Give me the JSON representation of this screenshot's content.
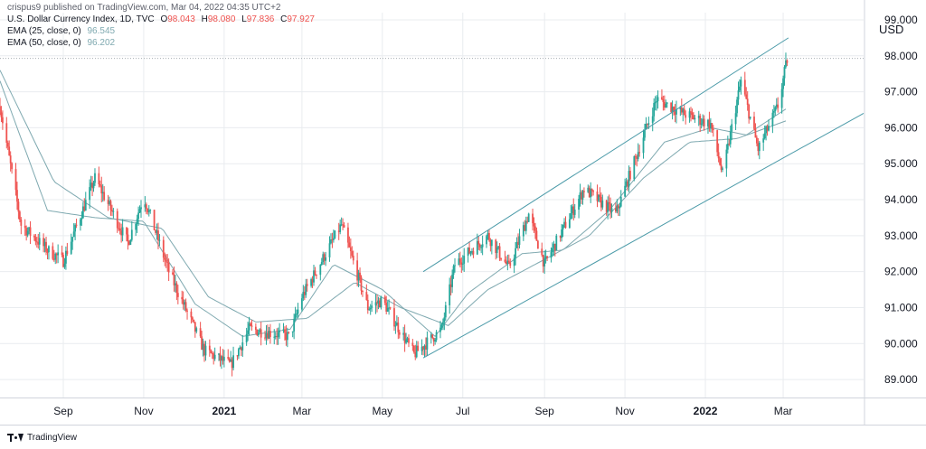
{
  "publisher_line": "crispus9 published on TradingView.com, Mar 04, 2022 04:35 UTC+2",
  "legend": {
    "symbol": "U.S. Dollar Currency Index, 1D, TVC",
    "ohlc": {
      "o_label": "O",
      "o": "98.043",
      "h_label": "H",
      "h": "98.080",
      "l_label": "L",
      "l": "97.836",
      "c_label": "C",
      "c": "97.927"
    },
    "ema25_label": "EMA (25, close, 0)",
    "ema25_value": "96.545",
    "ema50_label": "EMA (50, close, 0)",
    "ema50_value": "96.202"
  },
  "footer_brand": "TradingView",
  "colors": {
    "up": "#26a69a",
    "down": "#ef5350",
    "ema": "#7fa9b0",
    "grid": "#e9ecef",
    "channel": "#4a9aa8"
  },
  "chart_data": {
    "type": "candlestick",
    "currency_label": "USD",
    "y_axis": {
      "min": 88.5,
      "max": 99.2,
      "ticks": [
        "89.000",
        "90.000",
        "91.000",
        "92.000",
        "93.000",
        "94.000",
        "95.000",
        "96.000",
        "97.000",
        "98.000",
        "99.000"
      ]
    },
    "x_axis": {
      "ticks": [
        {
          "label": "Sep",
          "date": "2020-09-01",
          "bold": false
        },
        {
          "label": "Nov",
          "date": "2020-11-01",
          "bold": false
        },
        {
          "label": "2021",
          "date": "2021-01-01",
          "bold": true
        },
        {
          "label": "Mar",
          "date": "2021-03-01",
          "bold": false
        },
        {
          "label": "May",
          "date": "2021-05-01",
          "bold": false
        },
        {
          "label": "Jul",
          "date": "2021-07-01",
          "bold": false
        },
        {
          "label": "Sep",
          "date": "2021-09-01",
          "bold": false
        },
        {
          "label": "Nov",
          "date": "2021-11-01",
          "bold": false
        },
        {
          "label": "2022",
          "date": "2022-01-01",
          "bold": true
        },
        {
          "label": "Mar",
          "date": "2022-03-01",
          "bold": false
        }
      ]
    },
    "x_range": [
      "2020-07-15",
      "2022-05-01"
    ],
    "last_close": 97.927,
    "path_points": [
      [
        "2020-07-15",
        96.6
      ],
      [
        "2020-07-31",
        93.3
      ],
      [
        "2020-08-20",
        92.6
      ],
      [
        "2020-09-01",
        92.3
      ],
      [
        "2020-09-25",
        94.6
      ],
      [
        "2020-10-20",
        92.8
      ],
      [
        "2020-11-01",
        94.1
      ],
      [
        "2020-11-20",
        92.0
      ],
      [
        "2020-12-17",
        89.8
      ],
      [
        "2021-01-06",
        89.4
      ],
      [
        "2021-01-20",
        90.4
      ],
      [
        "2021-02-20",
        90.2
      ],
      [
        "2021-03-01",
        91.3
      ],
      [
        "2021-03-31",
        93.3
      ],
      [
        "2021-04-20",
        91.0
      ],
      [
        "2021-05-01",
        91.2
      ],
      [
        "2021-05-25",
        89.7
      ],
      [
        "2021-06-15",
        90.4
      ],
      [
        "2021-06-25",
        92.2
      ],
      [
        "2021-07-20",
        93.0
      ],
      [
        "2021-08-05",
        92.1
      ],
      [
        "2021-08-20",
        93.6
      ],
      [
        "2021-09-01",
        92.2
      ],
      [
        "2021-10-01",
        94.3
      ],
      [
        "2021-10-25",
        93.6
      ],
      [
        "2021-11-25",
        96.8
      ],
      [
        "2021-12-15",
        96.4
      ],
      [
        "2022-01-05",
        96.1
      ],
      [
        "2022-01-14",
        94.7
      ],
      [
        "2022-01-28",
        97.3
      ],
      [
        "2022-02-10",
        95.4
      ],
      [
        "2022-02-25",
        96.6
      ],
      [
        "2022-03-04",
        97.9
      ]
    ],
    "ema25": [
      [
        "2020-07-15",
        97.3
      ],
      [
        "2020-08-20",
        93.7
      ],
      [
        "2020-09-25",
        93.5
      ],
      [
        "2020-11-01",
        93.4
      ],
      [
        "2020-12-10",
        91.1
      ],
      [
        "2021-01-15",
        90.2
      ],
      [
        "2021-02-20",
        90.4
      ],
      [
        "2021-03-25",
        92.2
      ],
      [
        "2021-05-01",
        91.5
      ],
      [
        "2021-06-10",
        90.2
      ],
      [
        "2021-07-05",
        91.4
      ],
      [
        "2021-08-15",
        92.5
      ],
      [
        "2021-09-15",
        92.6
      ],
      [
        "2021-10-20",
        93.7
      ],
      [
        "2021-12-01",
        95.6
      ],
      [
        "2022-01-05",
        96.0
      ],
      [
        "2022-02-01",
        95.8
      ],
      [
        "2022-03-04",
        96.545
      ]
    ],
    "ema50": [
      [
        "2020-07-15",
        97.6
      ],
      [
        "2020-08-25",
        94.5
      ],
      [
        "2020-10-05",
        93.5
      ],
      [
        "2020-11-15",
        93.2
      ],
      [
        "2020-12-20",
        91.3
      ],
      [
        "2021-01-25",
        90.6
      ],
      [
        "2021-03-05",
        90.7
      ],
      [
        "2021-04-10",
        91.7
      ],
      [
        "2021-05-15",
        91.0
      ],
      [
        "2021-06-20",
        90.5
      ],
      [
        "2021-07-20",
        91.5
      ],
      [
        "2021-08-30",
        92.3
      ],
      [
        "2021-10-05",
        93.0
      ],
      [
        "2021-11-15",
        94.6
      ],
      [
        "2021-12-20",
        95.6
      ],
      [
        "2022-01-25",
        95.7
      ],
      [
        "2022-03-04",
        96.202
      ]
    ],
    "channel_lines": [
      {
        "name": "upper",
        "start": [
          "2021-06-01",
          92.0
        ],
        "end": [
          "2022-03-05",
          98.5
        ]
      },
      {
        "name": "lower",
        "start": [
          "2021-06-01",
          89.6
        ],
        "end": [
          "2022-05-01",
          96.4
        ]
      }
    ]
  }
}
